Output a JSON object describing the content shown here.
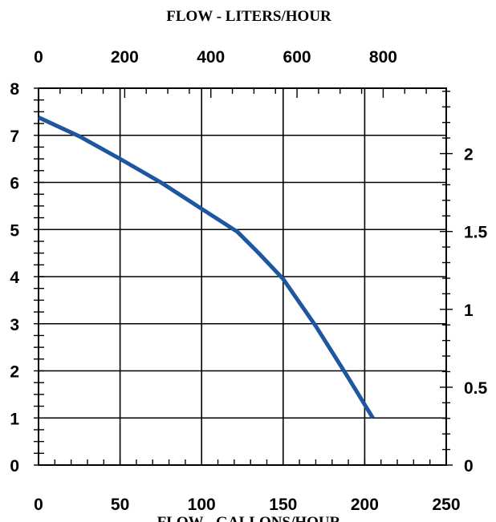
{
  "chart_data": {
    "type": "line",
    "top_axis_title": "FLOW - LITERS/HOUR",
    "bottom_axis_title": "FLOW - GALLONS/HOUR",
    "bottom_axis": {
      "range": [
        0,
        250
      ],
      "ticks": [
        0,
        50,
        100,
        150,
        200,
        250
      ],
      "tick_labels": [
        "0",
        "50",
        "100",
        "150",
        "200",
        "250"
      ]
    },
    "top_axis": {
      "ticks": [
        0,
        200,
        400,
        600,
        800
      ],
      "tick_labels": [
        "0",
        "200",
        "400",
        "600",
        "800"
      ]
    },
    "left_axis": {
      "range": [
        0,
        8
      ],
      "ticks": [
        0,
        1,
        2,
        3,
        4,
        5,
        6,
        7,
        8
      ],
      "tick_labels": [
        "0",
        "1",
        "2",
        "3",
        "4",
        "5",
        "6",
        "7",
        "8"
      ]
    },
    "right_axis": {
      "ticks": [
        0,
        0.5,
        1,
        1.5,
        2
      ],
      "tick_labels": [
        "0",
        "0.5",
        "1",
        "1.5",
        "2"
      ]
    },
    "grid": true,
    "series": [
      {
        "color": "#1e56a0",
        "x": [
          0,
          25,
          50,
          75,
          100,
          122,
          135,
          150,
          170,
          190,
          205
        ],
        "y": [
          7.38,
          6.98,
          6.5,
          6.0,
          5.44,
          4.95,
          4.5,
          3.95,
          2.95,
          1.85,
          1.0
        ]
      }
    ]
  }
}
